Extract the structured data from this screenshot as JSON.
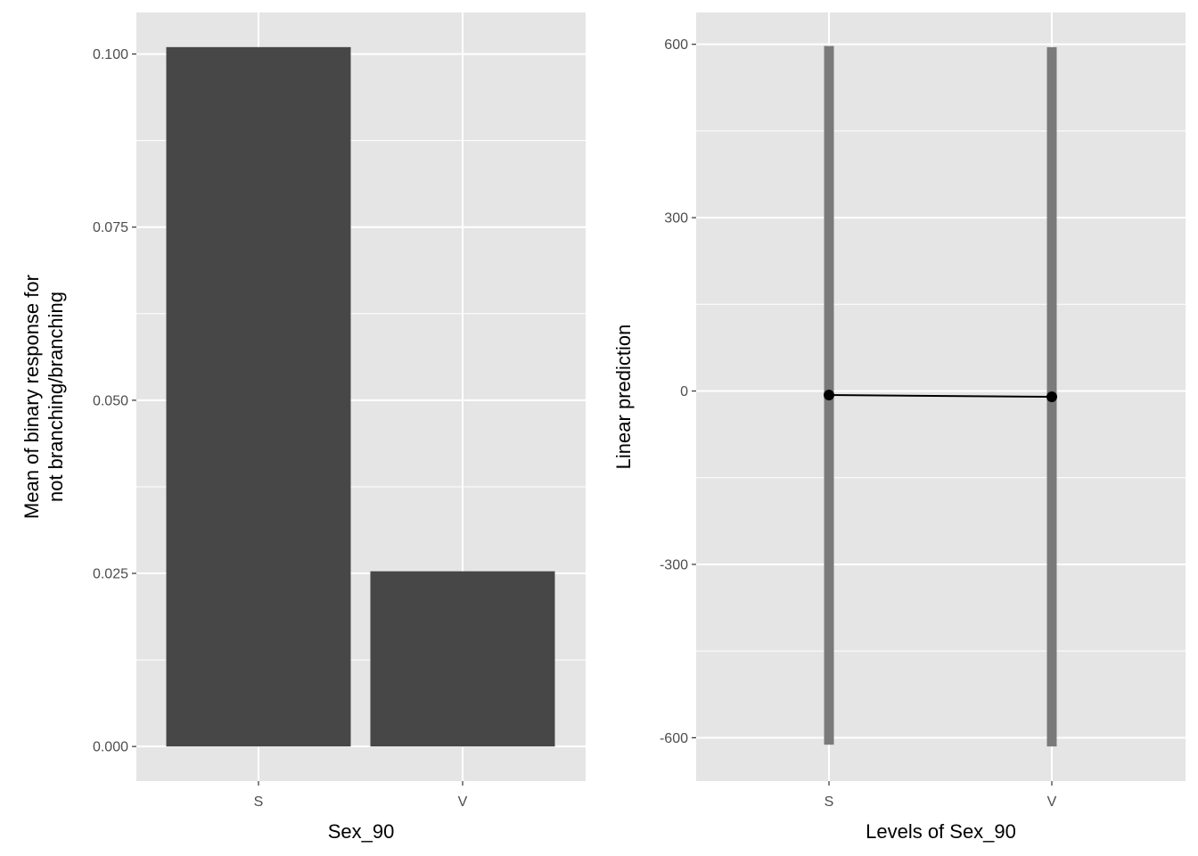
{
  "chart_data": [
    {
      "type": "bar",
      "categories": [
        "S",
        "V"
      ],
      "values": [
        0.101,
        0.0253
      ],
      "xlabel": "Sex_90",
      "ylabel": [
        "Mean of binary response for",
        "not branching/branching"
      ],
      "ylim": [
        -0.005,
        0.106
      ],
      "yticks": [
        0.0,
        0.025,
        0.05,
        0.075,
        0.1
      ],
      "ytick_labels": [
        "0.000",
        "0.025",
        "0.050",
        "0.075",
        "0.100"
      ],
      "grid": true,
      "colors": {
        "bar": "#474747",
        "panel": "#e5e5e5",
        "grid": "#ffffff"
      }
    },
    {
      "type": "line",
      "categories": [
        "S",
        "V"
      ],
      "values": [
        -7,
        -10
      ],
      "intervals": [
        [
          -612,
          597
        ],
        [
          -615,
          595
        ]
      ],
      "xlabel": "Levels of Sex_90",
      "ylabel": "Linear prediction",
      "ylim": [
        -675,
        655
      ],
      "yticks": [
        -600,
        -300,
        0,
        300,
        600
      ],
      "ytick_labels": [
        "-600",
        "-300",
        "0",
        "300",
        "600"
      ],
      "grid": true,
      "colors": {
        "interval": "#7a7a7a",
        "line": "#000000",
        "panel": "#e5e5e5",
        "grid": "#ffffff"
      }
    }
  ]
}
